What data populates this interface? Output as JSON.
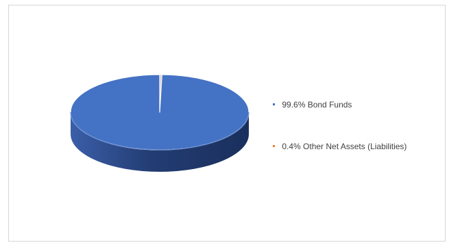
{
  "chart_data": {
    "type": "pie",
    "style": "3d",
    "title": "",
    "slices": [
      {
        "label": "99.6% Bond Funds",
        "value": 99.6,
        "color": "#4472c4"
      },
      {
        "label": "0.4% Other Net Assets (Liabilities)",
        "value": 0.4,
        "color": "#ed7d31"
      }
    ],
    "legend": "right"
  }
}
